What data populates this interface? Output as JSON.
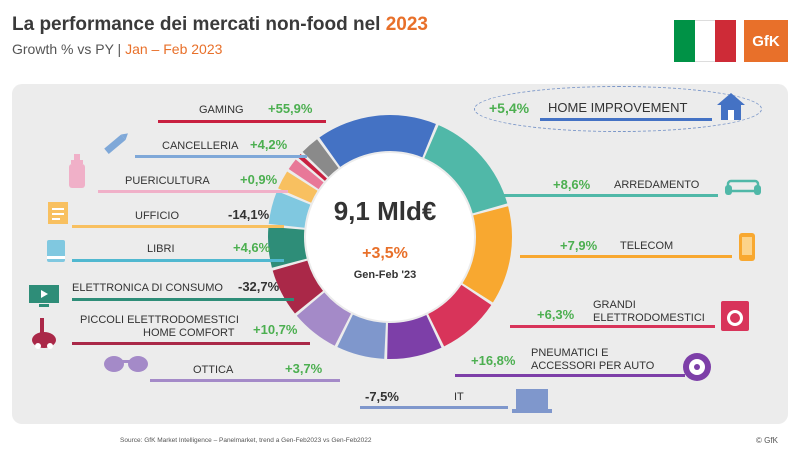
{
  "header": {
    "title_main": "La performance dei mercati non-food nel ",
    "title_year": "2023",
    "subtitle_main": "Growth % vs PY | ",
    "subtitle_period": "Jan – Feb 2023",
    "logo_text": "GfK"
  },
  "center": {
    "total": "9,1 Mld€",
    "growth": "+3,5%",
    "period": "Gen-Feb '23"
  },
  "footer": {
    "source": "Source: GfK Market Intelligence – Panelmarket, trend a Gen-Feb2023 vs Gen-Feb2022",
    "copyright": "© GfK"
  },
  "colors": {
    "accent": "#e8702a",
    "positive": "#4caf50",
    "flag_green": "#009246",
    "flag_white": "#ffffff",
    "flag_red": "#ce2b37"
  },
  "chart_data": {
    "type": "donut",
    "title": "La performance dei mercati non-food nel 2023",
    "subtitle": "Growth % vs PY | Jan – Feb 2023",
    "total_label": "9,1 Mld€",
    "total_growth": "+3,5%",
    "series": [
      {
        "name": "HOME IMPROVEMENT",
        "growth": "+5,4%",
        "share": 17,
        "color": "#4472c4",
        "icon": "house-icon"
      },
      {
        "name": "ARREDAMENTO",
        "growth": "+8,6%",
        "share": 15,
        "color": "#50b8a8",
        "icon": "sofa-icon"
      },
      {
        "name": "TELECOM",
        "growth": "+7,9%",
        "share": 14,
        "color": "#f8a830",
        "icon": "phone-icon"
      },
      {
        "name": "GRANDI ELETTRODOMESTICI",
        "growth": "+6,3%",
        "share": 9,
        "color": "#d8345a",
        "icon": "washing-machine-icon"
      },
      {
        "name": "PNEUMATICI E ACCESSORI PER AUTO",
        "growth": "+16,8%",
        "share": 8,
        "color": "#7d3fa8",
        "icon": "tire-icon"
      },
      {
        "name": "IT",
        "growth": "-7,5%",
        "share": 7,
        "color": "#7f97cc",
        "icon": "laptop-icon"
      },
      {
        "name": "OTTICA",
        "growth": "+3,7%",
        "share": 7,
        "color": "#a48ac8",
        "icon": "glasses-icon"
      },
      {
        "name": "PICCOLI ELETTRODOMESTICI HOME COMFORT",
        "growth": "+10,7%",
        "share": 7,
        "color": "#aa2848",
        "icon": "vacuum-icon"
      },
      {
        "name": "ELETTRONICA DI CONSUMO",
        "growth": "-32,7%",
        "share": 0,
        "color": "#3a7abb",
        "icon": "tv-icon"
      },
      {
        "name": "LIBRI",
        "growth": "+4,6%",
        "share": 6,
        "color": "#2e8d78",
        "icon": "book-icon"
      },
      {
        "name": "UFFICIO",
        "growth": "-14,1%",
        "share": 5,
        "color": "#80c8e0",
        "icon": "notepad-icon"
      },
      {
        "name": "PUERICULTURA",
        "growth": "+0,9%",
        "share": 3,
        "color": "#f8c060",
        "icon": "baby-bottle-icon"
      },
      {
        "name": "CANCELLERIA",
        "growth": "+4,2%",
        "share": 2,
        "color": "#e87898",
        "icon": "pen-icon"
      },
      {
        "name": "GAMING",
        "growth": "+55,9%",
        "share": 1,
        "color": "#c82040",
        "icon": "gamepad-icon"
      },
      {
        "name": "",
        "growth": "",
        "share": 3,
        "color": "#8a8a8a",
        "icon": ""
      }
    ]
  },
  "labels": {
    "gaming": {
      "name": "GAMING",
      "growth": "+55,9%"
    },
    "cancelleria": {
      "name": "CANCELLERIA",
      "growth": "+4,2%"
    },
    "puericultura": {
      "name": "PUERICULTURA",
      "growth": "+0,9%"
    },
    "ufficio": {
      "name": "UFFICIO",
      "growth": "-14,1%"
    },
    "libri": {
      "name": "LIBRI",
      "growth": "+4,6%"
    },
    "elettronica": {
      "name": "ELETTRONICA DI CONSUMO",
      "growth": "-32,7%"
    },
    "piccoli_line1": "PICCOLI ELETTRODOMESTICI",
    "piccoli_line2": "HOME COMFORT",
    "piccoli_growth": "+10,7%",
    "ottica": {
      "name": "OTTICA",
      "growth": "+3,7%"
    },
    "home": {
      "name": "HOME IMPROVEMENT",
      "growth": "+5,4%"
    },
    "arredamento": {
      "name": "ARREDAMENTO",
      "growth": "+8,6%"
    },
    "telecom": {
      "name": "TELECOM",
      "growth": "+7,9%"
    },
    "grandi_line1": "GRANDI",
    "grandi_line2": "ELETTRODOMESTICI",
    "grandi_growth": "+6,3%",
    "pneumatici_line1": "PNEUMATICI E",
    "pneumatici_line2": "ACCESSORI PER AUTO",
    "pneumatici_growth": "+16,8%",
    "it": {
      "name": "IT",
      "growth": "-7,5%"
    }
  }
}
